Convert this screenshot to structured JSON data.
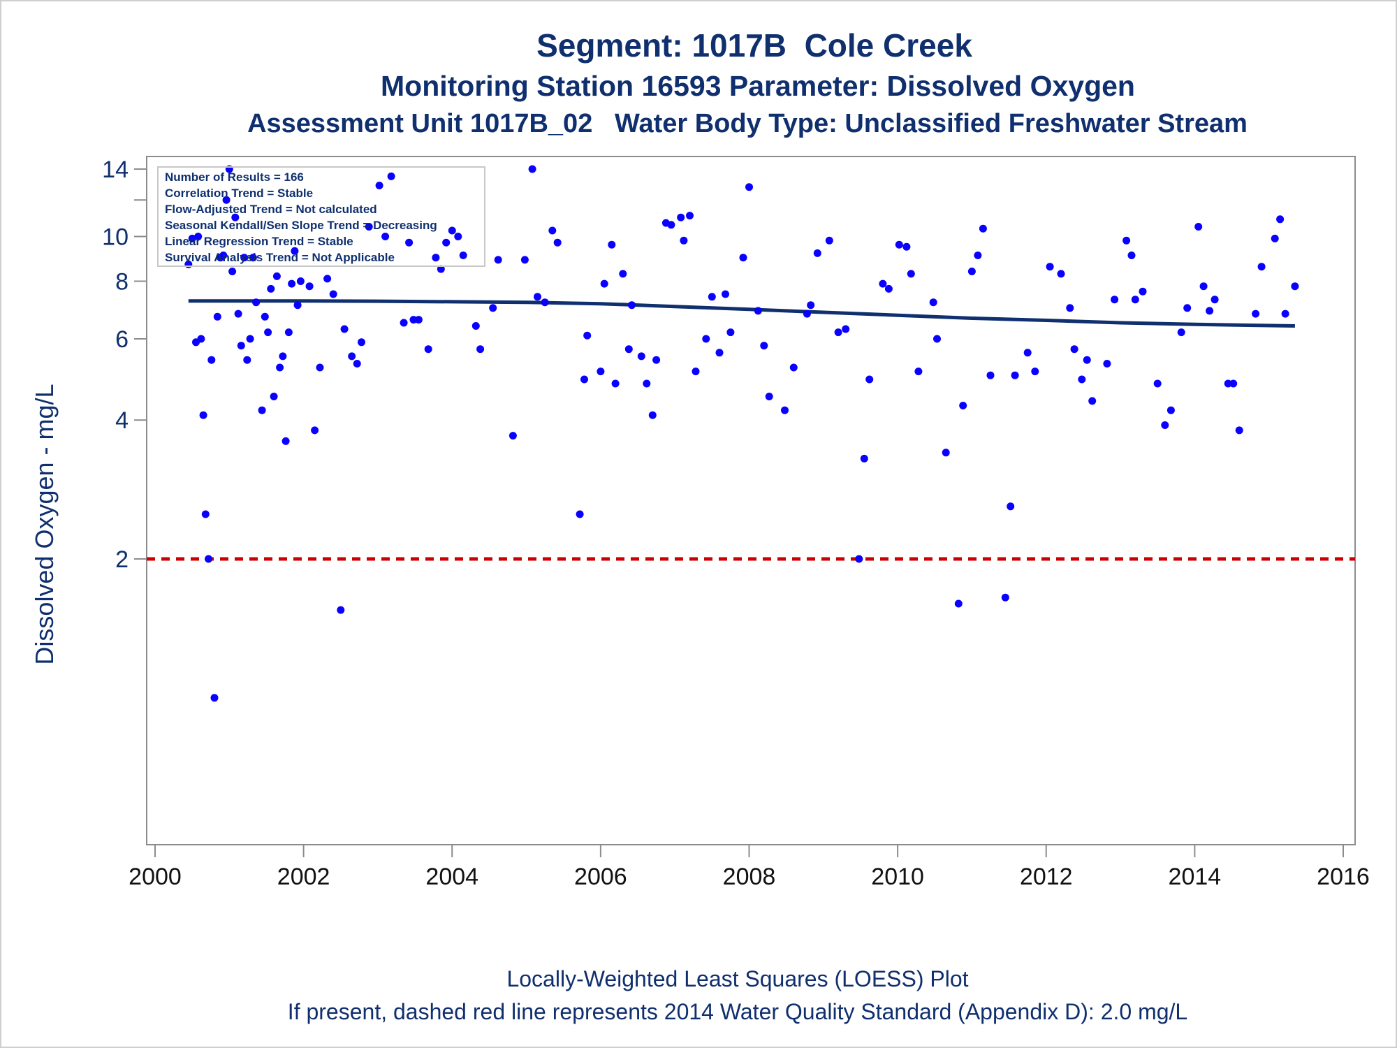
{
  "header": {
    "title": "Segment: 1017B  Cole Creek",
    "subtitle1": "Monitoring Station 16593 Parameter: Dissolved Oxygen",
    "subtitle2": "Assessment Unit 1017B_02   Water Body Type: Unclassified Freshwater Stream"
  },
  "footer": {
    "line1": "Locally-Weighted Least Squares (LOESS) Plot",
    "line2": "If present, dashed red line represents 2014 Water Quality Standard (Appendix D): 2.0 mg/L"
  },
  "stats_box": [
    "Number of Results = 166",
    "Correlation Trend = Stable",
    "Flow-Adjusted Trend = Not calculated",
    "Seasonal Kendall/Sen Slope Trend = Decreasing",
    "Linear Regression Trend = Stable",
    "Survival Analysis Trend = Not Applicable"
  ],
  "colors": {
    "text": "#0f2f6e",
    "points": "#0a00ff",
    "loess_line": "#0f2f6e",
    "standard_line": "#cc0000"
  },
  "chart_data": {
    "type": "scatter",
    "ylabel": "Dissolved Oxygen - mg/L",
    "xlabel": "",
    "y_scale": "log",
    "xlim": [
      2000,
      2016
    ],
    "ylim": [
      0.9,
      14.5
    ],
    "x_ticks": [
      2000,
      2002,
      2004,
      2006,
      2008,
      2010,
      2012,
      2014,
      2016
    ],
    "x_tick_labels": [
      "2000",
      "2002",
      "2004",
      "2006",
      "2008",
      "2010",
      "2012",
      "2014",
      "2016"
    ],
    "y_ticks": [
      2,
      4,
      6,
      8,
      10,
      14
    ],
    "y_tick_labels": [
      "2",
      "4",
      "6",
      "8",
      "10",
      "14"
    ],
    "y_minor_ticks": [
      12
    ],
    "standard_line": {
      "value": 2.0,
      "style": "dashed"
    },
    "loess": [
      [
        2000.45,
        7.25
      ],
      [
        2001,
        7.25
      ],
      [
        2002,
        7.25
      ],
      [
        2003,
        7.24
      ],
      [
        2004,
        7.22
      ],
      [
        2005,
        7.2
      ],
      [
        2006,
        7.15
      ],
      [
        2007,
        7.05
      ],
      [
        2008,
        6.95
      ],
      [
        2009,
        6.85
      ],
      [
        2010,
        6.75
      ],
      [
        2011,
        6.65
      ],
      [
        2012,
        6.58
      ],
      [
        2013,
        6.5
      ],
      [
        2014,
        6.45
      ],
      [
        2014.5,
        6.43
      ],
      [
        2015.35,
        6.4
      ]
    ],
    "points": [
      [
        2000.45,
        8.7
      ],
      [
        2000.5,
        9.9
      ],
      [
        2000.55,
        5.9
      ],
      [
        2000.58,
        10.0
      ],
      [
        2000.62,
        6.0
      ],
      [
        2000.65,
        4.1
      ],
      [
        2000.68,
        2.5
      ],
      [
        2000.72,
        2.0
      ],
      [
        2000.76,
        5.4
      ],
      [
        2000.8,
        1.0
      ],
      [
        2000.84,
        6.7
      ],
      [
        2000.88,
        9.0
      ],
      [
        2000.92,
        9.1
      ],
      [
        2000.96,
        12.0
      ],
      [
        2001.0,
        14.0
      ],
      [
        2001.04,
        8.4
      ],
      [
        2001.08,
        11.0
      ],
      [
        2001.12,
        6.8
      ],
      [
        2001.16,
        5.8
      ],
      [
        2001.2,
        9.0
      ],
      [
        2001.24,
        5.4
      ],
      [
        2001.28,
        6.0
      ],
      [
        2001.32,
        9.0
      ],
      [
        2001.36,
        7.2
      ],
      [
        2001.44,
        4.2
      ],
      [
        2001.48,
        6.7
      ],
      [
        2001.52,
        6.2
      ],
      [
        2001.56,
        7.7
      ],
      [
        2001.6,
        4.5
      ],
      [
        2001.64,
        8.2
      ],
      [
        2001.68,
        5.2
      ],
      [
        2001.72,
        5.5
      ],
      [
        2001.76,
        3.6
      ],
      [
        2001.8,
        6.2
      ],
      [
        2001.84,
        7.9
      ],
      [
        2001.88,
        9.3
      ],
      [
        2001.92,
        7.1
      ],
      [
        2001.96,
        8.0
      ],
      [
        2002.08,
        7.8
      ],
      [
        2002.15,
        3.8
      ],
      [
        2002.22,
        5.2
      ],
      [
        2002.32,
        8.1
      ],
      [
        2002.4,
        7.5
      ],
      [
        2002.5,
        1.55
      ],
      [
        2002.55,
        6.3
      ],
      [
        2002.65,
        5.5
      ],
      [
        2002.72,
        5.3
      ],
      [
        2002.78,
        5.9
      ],
      [
        2002.88,
        10.5
      ],
      [
        2003.02,
        12.9
      ],
      [
        2003.1,
        10.0
      ],
      [
        2003.18,
        13.5
      ],
      [
        2003.35,
        6.5
      ],
      [
        2003.42,
        9.7
      ],
      [
        2003.48,
        6.6
      ],
      [
        2003.55,
        6.6
      ],
      [
        2003.68,
        5.7
      ],
      [
        2003.78,
        9.0
      ],
      [
        2003.85,
        8.5
      ],
      [
        2003.92,
        9.7
      ],
      [
        2004.0,
        10.3
      ],
      [
        2004.08,
        10.0
      ],
      [
        2004.15,
        9.1
      ],
      [
        2004.32,
        6.4
      ],
      [
        2004.38,
        5.7
      ],
      [
        2004.55,
        7.0
      ],
      [
        2004.62,
        8.9
      ],
      [
        2004.82,
        3.7
      ],
      [
        2004.98,
        8.9
      ],
      [
        2005.08,
        14.0
      ],
      [
        2005.15,
        7.4
      ],
      [
        2005.25,
        7.2
      ],
      [
        2005.35,
        10.3
      ],
      [
        2005.42,
        9.7
      ],
      [
        2005.72,
        2.5
      ],
      [
        2005.78,
        4.9
      ],
      [
        2005.82,
        6.1
      ],
      [
        2006.0,
        5.1
      ],
      [
        2006.05,
        7.9
      ],
      [
        2006.15,
        9.6
      ],
      [
        2006.2,
        4.8
      ],
      [
        2006.3,
        8.3
      ],
      [
        2006.38,
        5.7
      ],
      [
        2006.42,
        7.1
      ],
      [
        2006.55,
        5.5
      ],
      [
        2006.62,
        4.8
      ],
      [
        2006.7,
        4.1
      ],
      [
        2006.75,
        5.4
      ],
      [
        2006.88,
        10.7
      ],
      [
        2006.95,
        10.6
      ],
      [
        2007.08,
        11.0
      ],
      [
        2007.12,
        9.8
      ],
      [
        2007.2,
        11.1
      ],
      [
        2007.28,
        5.1
      ],
      [
        2007.42,
        6.0
      ],
      [
        2007.5,
        7.4
      ],
      [
        2007.6,
        5.6
      ],
      [
        2007.68,
        7.5
      ],
      [
        2007.75,
        6.2
      ],
      [
        2007.92,
        9.0
      ],
      [
        2008.0,
        12.8
      ],
      [
        2008.12,
        6.9
      ],
      [
        2008.2,
        5.8
      ],
      [
        2008.27,
        4.5
      ],
      [
        2008.48,
        4.2
      ],
      [
        2008.6,
        5.2
      ],
      [
        2008.78,
        6.8
      ],
      [
        2008.83,
        7.1
      ],
      [
        2008.92,
        9.2
      ],
      [
        2009.08,
        9.8
      ],
      [
        2009.2,
        6.2
      ],
      [
        2009.3,
        6.3
      ],
      [
        2009.48,
        2.0
      ],
      [
        2009.55,
        3.3
      ],
      [
        2009.62,
        4.9
      ],
      [
        2009.8,
        7.9
      ],
      [
        2009.88,
        7.7
      ],
      [
        2010.02,
        9.6
      ],
      [
        2010.12,
        9.5
      ],
      [
        2010.18,
        8.3
      ],
      [
        2010.28,
        5.1
      ],
      [
        2010.48,
        7.2
      ],
      [
        2010.53,
        6.0
      ],
      [
        2010.65,
        3.4
      ],
      [
        2010.82,
        1.6
      ],
      [
        2010.88,
        4.3
      ],
      [
        2011.0,
        8.4
      ],
      [
        2011.08,
        9.1
      ],
      [
        2011.15,
        10.4
      ],
      [
        2011.25,
        5.0
      ],
      [
        2011.45,
        1.65
      ],
      [
        2011.52,
        2.6
      ],
      [
        2011.58,
        5.0
      ],
      [
        2011.75,
        5.6
      ],
      [
        2011.85,
        5.1
      ],
      [
        2012.05,
        8.6
      ],
      [
        2012.2,
        8.3
      ],
      [
        2012.32,
        7.0
      ],
      [
        2012.38,
        5.7
      ],
      [
        2012.48,
        4.9
      ],
      [
        2012.55,
        5.4
      ],
      [
        2012.62,
        4.4
      ],
      [
        2012.82,
        5.3
      ],
      [
        2012.92,
        7.3
      ],
      [
        2013.08,
        9.8
      ],
      [
        2013.15,
        9.1
      ],
      [
        2013.2,
        7.3
      ],
      [
        2013.3,
        7.6
      ],
      [
        2013.5,
        4.8
      ],
      [
        2013.6,
        3.9
      ],
      [
        2013.68,
        4.2
      ],
      [
        2013.82,
        6.2
      ],
      [
        2013.9,
        7.0
      ],
      [
        2014.05,
        10.5
      ],
      [
        2014.12,
        7.8
      ],
      [
        2014.2,
        6.9
      ],
      [
        2014.27,
        7.3
      ],
      [
        2014.45,
        4.8
      ],
      [
        2014.52,
        4.8
      ],
      [
        2014.6,
        3.8
      ],
      [
        2014.82,
        6.8
      ],
      [
        2014.9,
        8.6
      ],
      [
        2015.08,
        9.9
      ],
      [
        2015.15,
        10.9
      ],
      [
        2015.22,
        6.8
      ],
      [
        2015.35,
        7.8
      ]
    ]
  }
}
